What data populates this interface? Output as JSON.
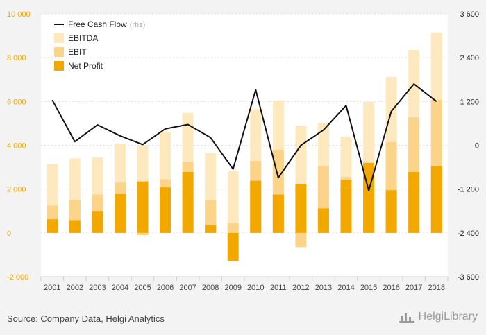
{
  "chart_data": {
    "type": "bar",
    "categories": [
      "2001",
      "2002",
      "2003",
      "2004",
      "2005",
      "2006",
      "2007",
      "2008",
      "2009",
      "2010",
      "2011",
      "2012",
      "2013",
      "2014",
      "2015",
      "2016",
      "2017",
      "2018"
    ],
    "series": [
      {
        "name": "EBITDA",
        "axis": "left",
        "type": "bar",
        "color": "#fde9bd",
        "values": [
          3150,
          3400,
          3450,
          4080,
          4000,
          4620,
          5480,
          3650,
          2830,
          5650,
          6050,
          4900,
          5020,
          4400,
          5980,
          7120,
          8350,
          9150
        ]
      },
      {
        "name": "EBIT",
        "axis": "left",
        "type": "bar",
        "color": "#fbd48a",
        "values": [
          1250,
          1520,
          1750,
          2300,
          -100,
          2450,
          3250,
          1500,
          450,
          3280,
          3800,
          -650,
          3050,
          2550,
          2500,
          4150,
          5280,
          6080
        ]
      },
      {
        "name": "Net Profit",
        "axis": "left",
        "type": "bar",
        "color": "#f3a800",
        "values": [
          620,
          580,
          1000,
          1780,
          2350,
          2080,
          2780,
          350,
          -1280,
          2380,
          1750,
          2230,
          1120,
          2420,
          3200,
          1950,
          2780,
          3050
        ]
      },
      {
        "name": "Free Cash Flow",
        "axis": "right",
        "type": "line",
        "color": "#111111",
        "values": [
          1240,
          100,
          560,
          260,
          20,
          450,
          570,
          210,
          -650,
          1520,
          -890,
          0,
          420,
          1090,
          -1240,
          930,
          1680,
          1200
        ]
      }
    ],
    "left_axis": {
      "min": -2000,
      "max": 10000,
      "ticks": [
        -2000,
        0,
        2000,
        4000,
        6000,
        8000,
        10000
      ],
      "tick_labels": [
        "-2 000",
        "0",
        "2 000",
        "4 000",
        "6 000",
        "8 000",
        "10 000"
      ],
      "color": "#f0a800"
    },
    "right_axis": {
      "min": -3600,
      "max": 3600,
      "ticks": [
        -3600,
        -2400,
        -1200,
        0,
        1200,
        2400,
        3600
      ],
      "tick_labels": [
        "-3 600",
        "-2 400",
        "-1 200",
        "0",
        "1 200",
        "2 400",
        "3 600"
      ],
      "color": "#222222"
    },
    "legend": [
      {
        "label": "Free Cash Flow",
        "suffix": "(rhs)",
        "kind": "line",
        "color": "#111111"
      },
      {
        "label": "EBITDA",
        "suffix": "",
        "kind": "box",
        "color": "#fde9bd"
      },
      {
        "label": "EBIT",
        "suffix": "",
        "kind": "box",
        "color": "#fbd48a"
      },
      {
        "label": "Net Profit",
        "suffix": "",
        "kind": "box",
        "color": "#f3a800"
      }
    ],
    "legend_position": "top-left",
    "grid": true,
    "plot_background": "#ffffff"
  },
  "footer": {
    "source": "Source: Company Data, Helgi Analytics",
    "brand": "HelgiLibrary"
  }
}
